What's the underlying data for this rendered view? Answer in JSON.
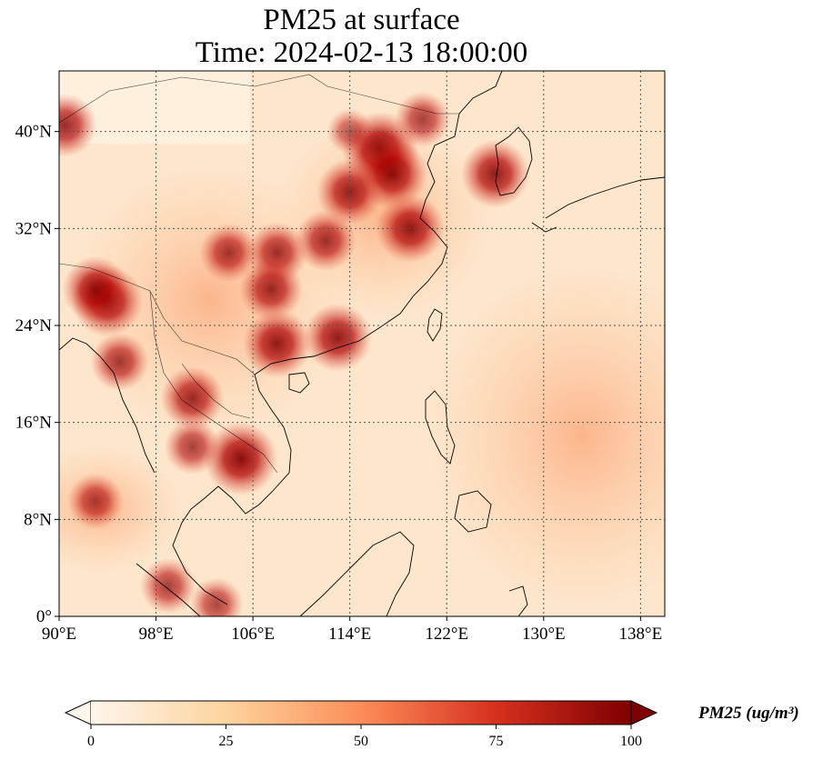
{
  "title_line1": "PM25 at surface",
  "title_line2": "Time: 2024-02-13 18:00:00",
  "map": {
    "lon_range": [
      90,
      140
    ],
    "lat_range": [
      0,
      45
    ],
    "gridlines": "dotted",
    "x_ticks": [
      "90°E",
      "98°E",
      "106°E",
      "114°E",
      "122°E",
      "130°E",
      "138°E"
    ],
    "x_tick_values": [
      90,
      98,
      106,
      114,
      122,
      130,
      138
    ],
    "y_ticks": [
      "0°",
      "8°N",
      "16°N",
      "24°N",
      "32°N",
      "40°N"
    ],
    "y_tick_values": [
      0,
      8,
      16,
      24,
      32,
      40
    ],
    "hotspots": [
      {
        "lon": 116.5,
        "lat": 38.5,
        "value": 100
      },
      {
        "lon": 117.5,
        "lat": 36.5,
        "value": 90
      },
      {
        "lon": 114,
        "lat": 35,
        "value": 80
      },
      {
        "lon": 112,
        "lat": 31,
        "value": 70
      },
      {
        "lon": 119,
        "lat": 32,
        "value": 85
      },
      {
        "lon": 108,
        "lat": 30,
        "value": 70
      },
      {
        "lon": 104,
        "lat": 30,
        "value": 65
      },
      {
        "lon": 107.5,
        "lat": 27,
        "value": 75
      },
      {
        "lon": 113,
        "lat": 23,
        "value": 85
      },
      {
        "lon": 108,
        "lat": 22.5,
        "value": 85
      },
      {
        "lon": 94,
        "lat": 26,
        "value": 90
      },
      {
        "lon": 93,
        "lat": 27,
        "value": 80
      },
      {
        "lon": 95,
        "lat": 21,
        "value": 65
      },
      {
        "lon": 105,
        "lat": 13,
        "value": 95
      },
      {
        "lon": 101,
        "lat": 14,
        "value": 60
      },
      {
        "lon": 101,
        "lat": 18,
        "value": 75
      },
      {
        "lon": 120,
        "lat": 41,
        "value": 60
      },
      {
        "lon": 126,
        "lat": 36.5,
        "value": 85
      },
      {
        "lon": 93,
        "lat": 9.5,
        "value": 60
      },
      {
        "lon": 99,
        "lat": 2.5,
        "value": 60
      },
      {
        "lon": 103,
        "lat": 1,
        "value": 55
      },
      {
        "lon": 114,
        "lat": 40,
        "value": 40
      },
      {
        "lon": 90.5,
        "lat": 40.5,
        "value": 75
      }
    ]
  },
  "colorbar": {
    "label": "PM25 (ug/m³)",
    "min": 0,
    "max": 100,
    "ticks": [
      "0",
      "25",
      "50",
      "75",
      "100"
    ],
    "tick_values": [
      0,
      25,
      50,
      75,
      100
    ],
    "extend": "both",
    "colors": [
      "#fff5eb",
      "#fdd49e",
      "#fc8d59",
      "#d7301f",
      "#7f0000"
    ]
  }
}
